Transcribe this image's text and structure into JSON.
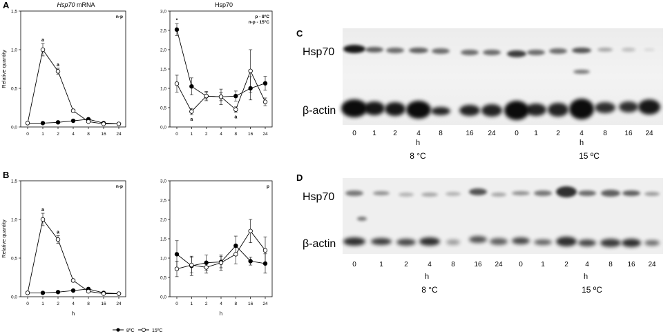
{
  "panels": {
    "A": "A",
    "B": "B",
    "C": "C",
    "D": "D",
    "col_mrna_title_italic": "Hsp70",
    "col_mrna_title_rest": " mRNA",
    "col_protein_title": "Hsp70"
  },
  "legend": {
    "s8": "8ºC",
    "s15": "15ºC"
  },
  "blots": {
    "C": {
      "hsp_label": "Hsp70",
      "actin_label": "β-actin",
      "lanes": [
        "0",
        "1",
        "2",
        "4",
        "8",
        "16",
        "24",
        "0",
        "1",
        "2",
        "4",
        "8",
        "16",
        "24"
      ],
      "h_label": "h",
      "temp_8": "8 °C",
      "temp_15": "15 ºC"
    },
    "D": {
      "hsp_label": "Hsp70",
      "actin_label": "β-actin",
      "lanes": [
        "0",
        "1",
        "2",
        "4",
        "8",
        "16",
        "24",
        "0",
        "1",
        "2",
        "4",
        "8",
        "16",
        "24"
      ],
      "h_label": "h",
      "temp_8": "8 °C",
      "temp_15": "15 ºC"
    }
  },
  "chart_data": [
    {
      "id": "A-mRNA",
      "type": "line",
      "ylabel": "Relative quantity",
      "xlabel": "",
      "categories": [
        "0",
        "1",
        "2",
        "4",
        "8",
        "16",
        "24"
      ],
      "ylim": [
        0,
        1.5
      ],
      "yticks": [
        "0,0",
        "0,5",
        "1,0",
        "1,5"
      ],
      "stat_label": [
        "n-p"
      ],
      "series": [
        {
          "name": "8ºC",
          "values": [
            0.05,
            0.05,
            0.06,
            0.08,
            0.1,
            0.05,
            0.04
          ],
          "errors": [
            0.01,
            0.01,
            0.01,
            0.01,
            0.01,
            0.01,
            0.01
          ]
        },
        {
          "name": "15ºC",
          "values": [
            0.05,
            1.0,
            0.72,
            0.21,
            0.07,
            0.04,
            0.04
          ],
          "errors": [
            0.01,
            0.08,
            0.04,
            0.02,
            0.01,
            0.01,
            0.01
          ]
        }
      ],
      "annotations": [
        {
          "text": "a",
          "series": 1,
          "index": 1
        },
        {
          "text": "a",
          "series": 1,
          "index": 2
        }
      ]
    },
    {
      "id": "A-protein",
      "type": "line",
      "ylabel": "",
      "xlabel": "",
      "categories": [
        "0",
        "1",
        "2",
        "4",
        "8",
        "16",
        "24"
      ],
      "ylim": [
        0,
        3.0
      ],
      "yticks": [
        "0,0",
        "0,5",
        "1,0",
        "1,5",
        "2,0",
        "2,5",
        "3,0"
      ],
      "stat_label": [
        "p - 8°C",
        "n-p - 15°C"
      ],
      "series": [
        {
          "name": "8ºC",
          "values": [
            2.52,
            1.05,
            0.8,
            0.78,
            0.8,
            1.0,
            1.13
          ],
          "errors": [
            0.15,
            0.22,
            0.12,
            0.2,
            0.13,
            0.3,
            0.18
          ]
        },
        {
          "name": "15ºC",
          "values": [
            1.12,
            0.4,
            0.8,
            0.78,
            0.45,
            1.45,
            0.65
          ],
          "errors": [
            0.22,
            0.08,
            0.08,
            0.1,
            0.07,
            0.55,
            0.1
          ]
        }
      ],
      "annotations": [
        {
          "text": "*",
          "series": 0,
          "index": 0
        },
        {
          "text": "a",
          "series": 1,
          "index": 1,
          "below": true
        },
        {
          "text": "a",
          "series": 1,
          "index": 4,
          "below": true
        }
      ]
    },
    {
      "id": "B-mRNA",
      "type": "line",
      "ylabel": "Relative quantity",
      "xlabel": "h",
      "categories": [
        "0",
        "1",
        "2",
        "4",
        "8",
        "16",
        "24"
      ],
      "ylim": [
        0,
        1.5
      ],
      "yticks": [
        "0,0",
        "0,5",
        "1,0",
        "1,5"
      ],
      "stat_label": [
        "n-p"
      ],
      "series": [
        {
          "name": "8ºC",
          "values": [
            0.05,
            0.05,
            0.06,
            0.08,
            0.1,
            0.05,
            0.04
          ],
          "errors": [
            0.01,
            0.01,
            0.01,
            0.01,
            0.01,
            0.01,
            0.01
          ]
        },
        {
          "name": "15ºC",
          "values": [
            0.05,
            1.0,
            0.74,
            0.21,
            0.07,
            0.04,
            0.04
          ],
          "errors": [
            0.01,
            0.08,
            0.05,
            0.02,
            0.01,
            0.01,
            0.01
          ]
        }
      ],
      "annotations": [
        {
          "text": "a",
          "series": 1,
          "index": 1
        },
        {
          "text": "a",
          "series": 1,
          "index": 2
        }
      ]
    },
    {
      "id": "B-protein",
      "type": "line",
      "ylabel": "",
      "xlabel": "h",
      "categories": [
        "0",
        "1",
        "2",
        "4",
        "8",
        "16",
        "24"
      ],
      "ylim": [
        0,
        3.0
      ],
      "yticks": [
        "0,0",
        "0,5",
        "1,0",
        "1,5",
        "2,0",
        "2,5",
        "3,0"
      ],
      "stat_label": [
        "p"
      ],
      "series": [
        {
          "name": "8ºC",
          "values": [
            1.1,
            0.8,
            0.88,
            0.9,
            1.32,
            0.92,
            0.86
          ],
          "errors": [
            0.35,
            0.25,
            0.2,
            0.15,
            0.25,
            0.1,
            0.25
          ]
        },
        {
          "name": "15ºC",
          "values": [
            0.72,
            0.82,
            0.76,
            0.88,
            1.1,
            1.7,
            1.2
          ],
          "errors": [
            0.2,
            0.2,
            0.15,
            0.2,
            0.25,
            0.3,
            0.35
          ]
        }
      ],
      "annotations": []
    }
  ]
}
